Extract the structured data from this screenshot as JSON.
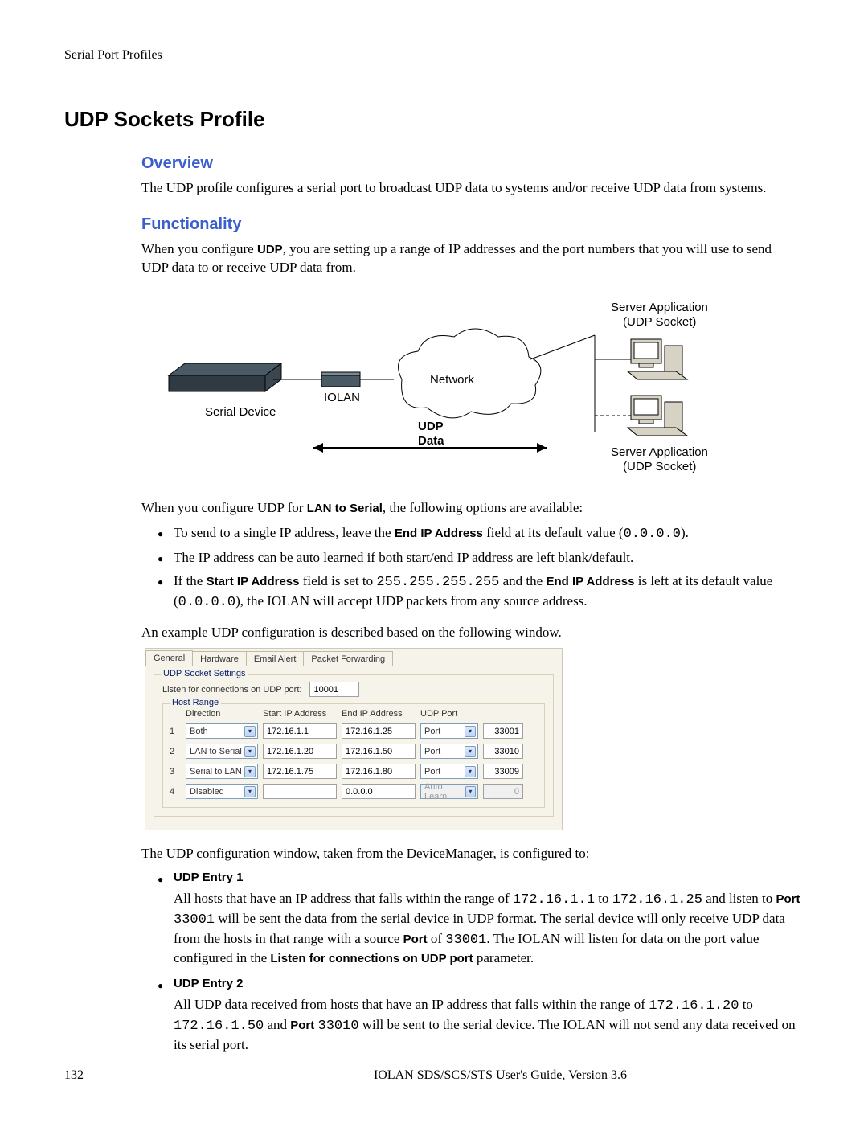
{
  "header": {
    "breadcrumb": "Serial Port Profiles"
  },
  "title": "UDP Sockets Profile",
  "sections": {
    "overview": {
      "heading": "Overview",
      "text": "The UDP profile configures a serial port to broadcast UDP data to systems and/or receive UDP data from systems."
    },
    "functionality": {
      "heading": "Functionality",
      "intro_pre": "When you configure ",
      "intro_bold": "UDP",
      "intro_post": ", you are setting up a range of IP addresses and the port numbers that you will use to send UDP data to or receive UDP data from.",
      "diagram": {
        "serial_device": "Serial Device",
        "iolan": "IOLAN",
        "network": "Network",
        "udp_data_1": "UDP",
        "udp_data_2": "Data",
        "server_app": "Server Application",
        "udp_socket": "(UDP Socket)",
        "colors": {
          "stroke": "#000000",
          "pc_body": "#d6d2c4",
          "pc_face": "#ffffff",
          "iolan_body": "#4a5a65"
        }
      },
      "lan_to_serial_intro_pre": "When you configure UDP for ",
      "lan_to_serial_intro_bold": "LAN to Serial",
      "lan_to_serial_intro_post": ", the following options are available:",
      "bullets": [
        {
          "pre": "To send to a single IP address, leave the ",
          "b": "End IP Address",
          "mid": " field at its default value (",
          "mono": "0.0.0.0",
          "post": ")."
        },
        {
          "text": "The IP address can be auto learned if both start/end IP address are left blank/default."
        },
        {
          "pre": "If the ",
          "b": "Start IP Address",
          "mid": " field is set to ",
          "mono": "255.255.255.255",
          "mid2": " and the ",
          "b2": "End IP Address",
          "mid3": " is left at its default value (",
          "mono2": "0.0.0.0",
          "post": "), the IOLAN will accept UDP packets from any source address."
        }
      ],
      "example_intro": "An example UDP configuration is described based on the following window.",
      "config_intro": "The UDP configuration window, taken from the DeviceManager, is configured to:",
      "entries": [
        {
          "title": "UDP Entry 1",
          "p1_a": "All hosts that have an IP address that falls within the range of ",
          "mono1": "172.16.1.1",
          "p1_b": " to ",
          "mono2": "172.16.1.25",
          "p2_a": " and listen to ",
          "b1": "Port",
          "sp": " ",
          "mono3": "33001",
          "p2_b": " will be sent the data from the serial device in UDP format. The serial device will only receive UDP data from the hosts in that range with a source ",
          "b2": "Port",
          "p2_c": " of ",
          "mono4": "33001",
          "p2_d": ". The IOLAN will listen for data on the port value configured in the ",
          "b3": "Listen for connections on UDP port",
          "p2_e": " parameter."
        },
        {
          "title": "UDP Entry 2",
          "p_a": "All UDP data received from hosts that have an IP address that falls within the range of ",
          "mono1": "172.16.1.20",
          "p_b": " to ",
          "mono2": "172.16.1.50",
          "p_c": " and ",
          "b1": "Port",
          "sp": " ",
          "mono3": "33010",
          "p_d": " will be sent to the serial device. The IOLAN will not send any data received on its serial port."
        }
      ]
    }
  },
  "config_window": {
    "tabs": [
      "General",
      "Hardware",
      "Email Alert",
      "Packet Forwarding"
    ],
    "active_tab": 0,
    "fieldset_legend": "UDP Socket Settings",
    "listen_label": "Listen for connections on UDP port:",
    "listen_value": "10001",
    "host_range_legend": "Host Range",
    "columns": {
      "num": "",
      "direction": "Direction",
      "start": "Start IP Address",
      "end": "End IP Address",
      "udp_port": "UDP Port",
      "portnum": ""
    },
    "rows": [
      {
        "n": "1",
        "dir": "Both",
        "start": "172.16.1.1",
        "end": "172.16.1.25",
        "port_type": "Port",
        "port": "33001",
        "disabled": false
      },
      {
        "n": "2",
        "dir": "LAN to Serial",
        "start": "172.16.1.20",
        "end": "172.16.1.50",
        "port_type": "Port",
        "port": "33010",
        "disabled": false
      },
      {
        "n": "3",
        "dir": "Serial to LAN",
        "start": "172.16.1.75",
        "end": "172.16.1.80",
        "port_type": "Port",
        "port": "33009",
        "disabled": false
      },
      {
        "n": "4",
        "dir": "Disabled",
        "start": "",
        "end": "0.0.0.0",
        "port_type": "Auto Learn",
        "port": "0",
        "disabled": true
      }
    ],
    "colors": {
      "bg": "#f6f3ea",
      "border": "#d0c8b8",
      "legend": "#0a246a",
      "select_border": "#7f9db9"
    }
  },
  "footer": {
    "page": "132",
    "guide": "IOLAN SDS/SCS/STS User's Guide, Version 3.6"
  }
}
